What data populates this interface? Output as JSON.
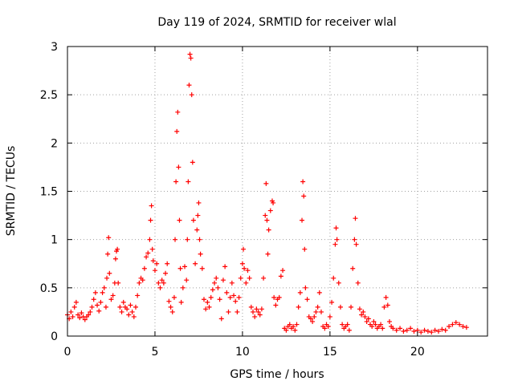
{
  "chart_data": {
    "type": "scatter",
    "title": "Day 119 of 2024, SRMTID for receiver wlal",
    "xlabel": "GPS time / hours",
    "ylabel": "SRMTID / TECUs",
    "xlim": [
      0,
      24
    ],
    "ylim": [
      0,
      3
    ],
    "xticks": [
      0,
      5,
      10,
      15,
      20
    ],
    "xtick_labels": [
      "0",
      "5",
      "10",
      "15",
      "20"
    ],
    "yticks": [
      0,
      0.5,
      1,
      1.5,
      2,
      2.5,
      3
    ],
    "ytick_labels": [
      "0",
      "0.5",
      "1",
      "1.5",
      "2",
      "2.5",
      "3"
    ],
    "grid": true,
    "marker": "+",
    "color": "#ff0000",
    "series": [
      {
        "name": "SRMTID",
        "points": [
          [
            0.0,
            0.22
          ],
          [
            0.1,
            0.18
          ],
          [
            0.2,
            0.25
          ],
          [
            0.3,
            0.2
          ],
          [
            0.4,
            0.3
          ],
          [
            0.5,
            0.35
          ],
          [
            0.6,
            0.22
          ],
          [
            0.7,
            0.19
          ],
          [
            0.8,
            0.24
          ],
          [
            0.9,
            0.2
          ],
          [
            1.0,
            0.17
          ],
          [
            1.1,
            0.2
          ],
          [
            1.2,
            0.22
          ],
          [
            1.3,
            0.25
          ],
          [
            1.4,
            0.3
          ],
          [
            1.5,
            0.38
          ],
          [
            1.6,
            0.45
          ],
          [
            1.7,
            0.32
          ],
          [
            1.8,
            0.26
          ],
          [
            1.9,
            0.35
          ],
          [
            2.0,
            0.45
          ],
          [
            2.1,
            0.5
          ],
          [
            2.2,
            0.3
          ],
          [
            2.25,
            0.6
          ],
          [
            2.3,
            0.85
          ],
          [
            2.35,
            1.02
          ],
          [
            2.4,
            0.65
          ],
          [
            2.5,
            0.38
          ],
          [
            2.6,
            0.42
          ],
          [
            2.7,
            0.55
          ],
          [
            2.75,
            0.8
          ],
          [
            2.8,
            0.88
          ],
          [
            2.85,
            0.9
          ],
          [
            2.9,
            0.55
          ],
          [
            3.0,
            0.3
          ],
          [
            3.1,
            0.25
          ],
          [
            3.2,
            0.35
          ],
          [
            3.3,
            0.3
          ],
          [
            3.4,
            0.28
          ],
          [
            3.5,
            0.22
          ],
          [
            3.6,
            0.32
          ],
          [
            3.7,
            0.25
          ],
          [
            3.8,
            0.2
          ],
          [
            3.9,
            0.3
          ],
          [
            4.0,
            0.42
          ],
          [
            4.1,
            0.55
          ],
          [
            4.2,
            0.6
          ],
          [
            4.3,
            0.58
          ],
          [
            4.4,
            0.7
          ],
          [
            4.5,
            0.82
          ],
          [
            4.6,
            0.86
          ],
          [
            4.7,
            1.0
          ],
          [
            4.75,
            1.2
          ],
          [
            4.8,
            1.35
          ],
          [
            4.85,
            0.9
          ],
          [
            4.9,
            0.78
          ],
          [
            5.0,
            0.68
          ],
          [
            5.1,
            0.75
          ],
          [
            5.2,
            0.55
          ],
          [
            5.3,
            0.5
          ],
          [
            5.4,
            0.58
          ],
          [
            5.5,
            0.55
          ],
          [
            5.6,
            0.65
          ],
          [
            5.7,
            0.75
          ],
          [
            5.8,
            0.36
          ],
          [
            5.9,
            0.3
          ],
          [
            6.0,
            0.25
          ],
          [
            6.1,
            0.4
          ],
          [
            6.15,
            1.0
          ],
          [
            6.2,
            1.6
          ],
          [
            6.25,
            2.12
          ],
          [
            6.3,
            2.32
          ],
          [
            6.35,
            1.75
          ],
          [
            6.4,
            1.2
          ],
          [
            6.45,
            0.7
          ],
          [
            6.5,
            0.35
          ],
          [
            6.6,
            0.5
          ],
          [
            6.7,
            0.72
          ],
          [
            6.8,
            0.58
          ],
          [
            6.85,
            1.0
          ],
          [
            6.9,
            1.6
          ],
          [
            6.95,
            2.6
          ],
          [
            7.0,
            2.92
          ],
          [
            7.05,
            2.88
          ],
          [
            7.1,
            2.5
          ],
          [
            7.15,
            1.8
          ],
          [
            7.2,
            1.2
          ],
          [
            7.3,
            0.75
          ],
          [
            7.4,
            1.1
          ],
          [
            7.45,
            1.25
          ],
          [
            7.5,
            1.38
          ],
          [
            7.55,
            1.0
          ],
          [
            7.6,
            0.85
          ],
          [
            7.7,
            0.7
          ],
          [
            7.8,
            0.38
          ],
          [
            7.9,
            0.28
          ],
          [
            8.0,
            0.35
          ],
          [
            8.1,
            0.3
          ],
          [
            8.2,
            0.4
          ],
          [
            8.3,
            0.48
          ],
          [
            8.4,
            0.55
          ],
          [
            8.5,
            0.6
          ],
          [
            8.6,
            0.5
          ],
          [
            8.7,
            0.38
          ],
          [
            8.8,
            0.18
          ],
          [
            8.9,
            0.58
          ],
          [
            9.0,
            0.72
          ],
          [
            9.1,
            0.45
          ],
          [
            9.2,
            0.25
          ],
          [
            9.3,
            0.4
          ],
          [
            9.4,
            0.55
          ],
          [
            9.5,
            0.42
          ],
          [
            9.6,
            0.36
          ],
          [
            9.7,
            0.25
          ],
          [
            9.8,
            0.4
          ],
          [
            9.9,
            0.6
          ],
          [
            10.0,
            0.75
          ],
          [
            10.05,
            0.9
          ],
          [
            10.1,
            0.7
          ],
          [
            10.2,
            0.55
          ],
          [
            10.3,
            0.68
          ],
          [
            10.4,
            0.6
          ],
          [
            10.5,
            0.3
          ],
          [
            10.6,
            0.25
          ],
          [
            10.7,
            0.2
          ],
          [
            10.8,
            0.28
          ],
          [
            10.9,
            0.25
          ],
          [
            11.0,
            0.22
          ],
          [
            11.1,
            0.28
          ],
          [
            11.2,
            0.6
          ],
          [
            11.3,
            1.25
          ],
          [
            11.35,
            1.58
          ],
          [
            11.4,
            1.2
          ],
          [
            11.45,
            0.85
          ],
          [
            11.5,
            1.1
          ],
          [
            11.6,
            1.3
          ],
          [
            11.7,
            1.4
          ],
          [
            11.75,
            1.38
          ],
          [
            11.8,
            0.4
          ],
          [
            11.9,
            0.32
          ],
          [
            12.0,
            0.38
          ],
          [
            12.1,
            0.4
          ],
          [
            12.2,
            0.62
          ],
          [
            12.3,
            0.68
          ],
          [
            12.4,
            0.08
          ],
          [
            12.5,
            0.06
          ],
          [
            12.6,
            0.1
          ],
          [
            12.7,
            0.12
          ],
          [
            12.8,
            0.08
          ],
          [
            12.9,
            0.1
          ],
          [
            13.0,
            0.06
          ],
          [
            13.1,
            0.12
          ],
          [
            13.2,
            0.3
          ],
          [
            13.3,
            0.45
          ],
          [
            13.4,
            1.2
          ],
          [
            13.45,
            1.6
          ],
          [
            13.5,
            1.45
          ],
          [
            13.55,
            0.9
          ],
          [
            13.6,
            0.5
          ],
          [
            13.7,
            0.38
          ],
          [
            13.8,
            0.2
          ],
          [
            13.9,
            0.18
          ],
          [
            14.0,
            0.15
          ],
          [
            14.1,
            0.2
          ],
          [
            14.2,
            0.25
          ],
          [
            14.3,
            0.3
          ],
          [
            14.4,
            0.45
          ],
          [
            14.5,
            0.25
          ],
          [
            14.6,
            0.1
          ],
          [
            14.7,
            0.08
          ],
          [
            14.8,
            0.12
          ],
          [
            14.9,
            0.1
          ],
          [
            15.0,
            0.2
          ],
          [
            15.1,
            0.35
          ],
          [
            15.2,
            0.6
          ],
          [
            15.3,
            0.95
          ],
          [
            15.35,
            1.12
          ],
          [
            15.4,
            1.0
          ],
          [
            15.5,
            0.55
          ],
          [
            15.6,
            0.3
          ],
          [
            15.7,
            0.12
          ],
          [
            15.8,
            0.08
          ],
          [
            15.9,
            0.1
          ],
          [
            16.0,
            0.12
          ],
          [
            16.1,
            0.06
          ],
          [
            16.2,
            0.3
          ],
          [
            16.3,
            0.7
          ],
          [
            16.4,
            1.0
          ],
          [
            16.45,
            1.22
          ],
          [
            16.5,
            0.95
          ],
          [
            16.6,
            0.55
          ],
          [
            16.7,
            0.28
          ],
          [
            16.8,
            0.22
          ],
          [
            16.9,
            0.25
          ],
          [
            17.0,
            0.2
          ],
          [
            17.1,
            0.15
          ],
          [
            17.2,
            0.18
          ],
          [
            17.3,
            0.12
          ],
          [
            17.4,
            0.1
          ],
          [
            17.5,
            0.15
          ],
          [
            17.6,
            0.12
          ],
          [
            17.7,
            0.08
          ],
          [
            17.8,
            0.1
          ],
          [
            17.9,
            0.12
          ],
          [
            18.0,
            0.08
          ],
          [
            18.1,
            0.3
          ],
          [
            18.2,
            0.4
          ],
          [
            18.3,
            0.32
          ],
          [
            18.4,
            0.15
          ],
          [
            18.5,
            0.1
          ],
          [
            18.6,
            0.08
          ],
          [
            18.8,
            0.06
          ],
          [
            19.0,
            0.08
          ],
          [
            19.2,
            0.05
          ],
          [
            19.4,
            0.06
          ],
          [
            19.6,
            0.08
          ],
          [
            19.8,
            0.05
          ],
          [
            20.0,
            0.06
          ],
          [
            20.2,
            0.04
          ],
          [
            20.4,
            0.06
          ],
          [
            20.6,
            0.05
          ],
          [
            20.8,
            0.04
          ],
          [
            21.0,
            0.06
          ],
          [
            21.2,
            0.05
          ],
          [
            21.4,
            0.07
          ],
          [
            21.6,
            0.06
          ],
          [
            21.8,
            0.1
          ],
          [
            22.0,
            0.12
          ],
          [
            22.2,
            0.14
          ],
          [
            22.4,
            0.12
          ],
          [
            22.6,
            0.1
          ],
          [
            22.8,
            0.09
          ]
        ]
      }
    ]
  }
}
